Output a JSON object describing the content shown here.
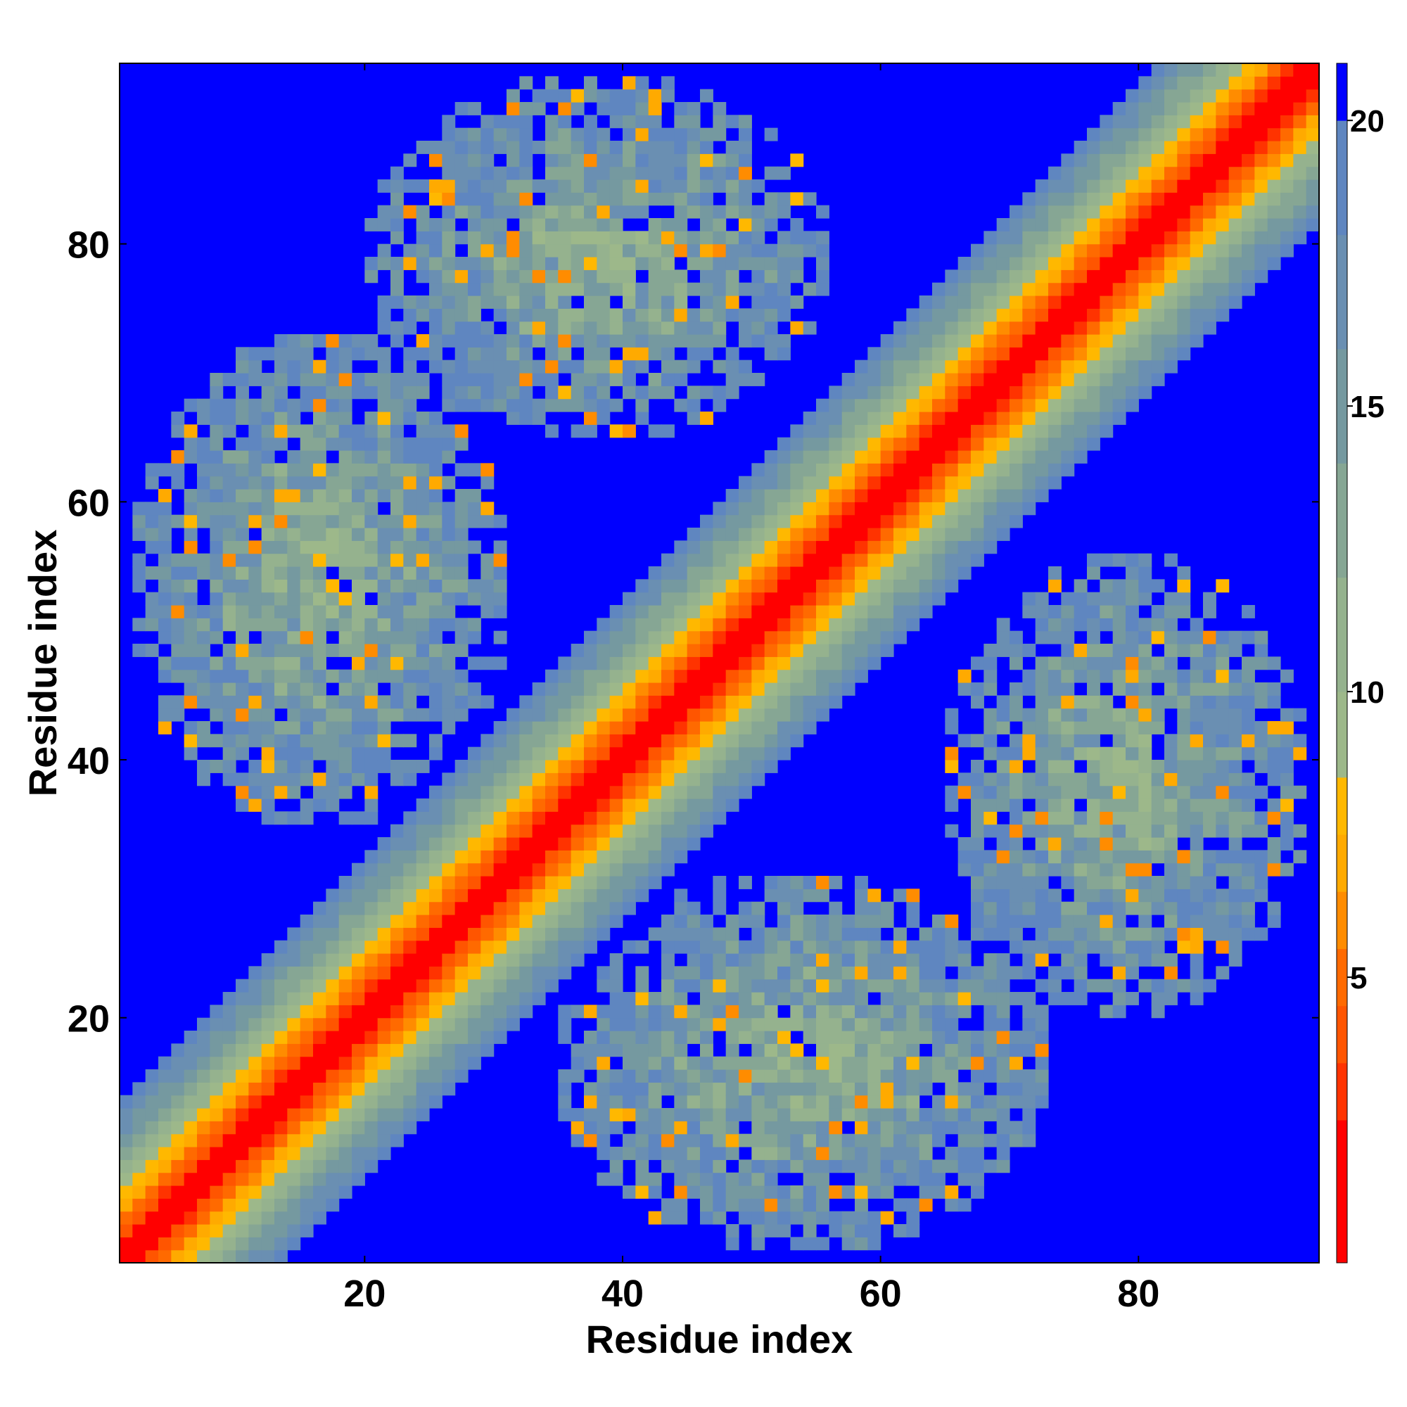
{
  "chart_data": {
    "type": "heatmap",
    "title": "",
    "xlabel": "Residue index",
    "ylabel": "Residue index",
    "n_residues": 93,
    "xlim": [
      1,
      93
    ],
    "ylim": [
      1,
      93
    ],
    "x_ticks": [
      20,
      40,
      60,
      80
    ],
    "y_ticks": [
      20,
      40,
      60,
      80
    ],
    "colorbar": {
      "range": [
        0,
        21
      ],
      "ticks": [
        5,
        10,
        15,
        20
      ],
      "stops": [
        {
          "max": 2.5,
          "color": "#ff0000"
        },
        {
          "max": 3.5,
          "color": "#ff3300"
        },
        {
          "max": 4.5,
          "color": "#ff5500"
        },
        {
          "max": 5.5,
          "color": "#ff6a00"
        },
        {
          "max": 6.5,
          "color": "#ff8c00"
        },
        {
          "max": 7.5,
          "color": "#ffaa00"
        },
        {
          "max": 8.5,
          "color": "#ffb800"
        },
        {
          "max": 10.0,
          "color": "#9db88a"
        },
        {
          "max": 12.0,
          "color": "#95b28e"
        },
        {
          "max": 14.0,
          "color": "#86a694"
        },
        {
          "max": 16.0,
          "color": "#7599a0"
        },
        {
          "max": 18.0,
          "color": "#6a8fb2"
        },
        {
          "max": 20.0,
          "color": "#5f86c0"
        },
        {
          "max": 21.0,
          "color": "#0000ff"
        }
      ]
    },
    "out_of_range_color": "#0000ff",
    "distance_cutoff": 20,
    "structure_note_values": {
      "diagonal_band_width": 14,
      "contact_regions": [
        {
          "x": [
            2,
            30
          ],
          "y": [
            35,
            72
          ],
          "min_value": 9
        },
        {
          "x": [
            20,
            55
          ],
          "y": [
            65,
            92
          ],
          "min_value": 9
        },
        {
          "x": [
            35,
            70
          ],
          "y": [
            2,
            30
          ],
          "min_value": 9
        },
        {
          "x": [
            65,
            92
          ],
          "y": [
            20,
            55
          ],
          "min_value": 9
        }
      ]
    }
  }
}
